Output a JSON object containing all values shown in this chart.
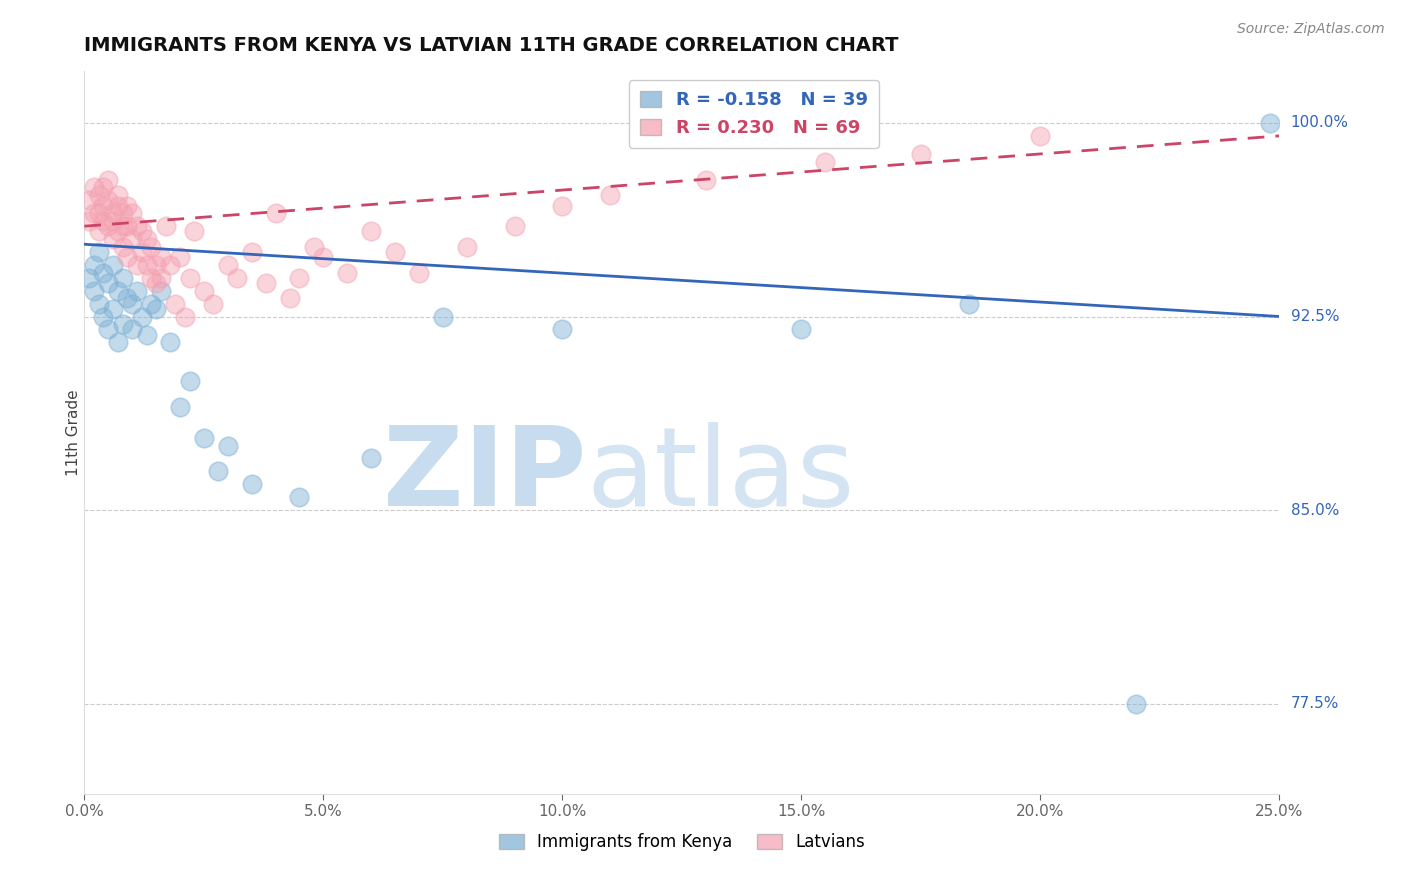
{
  "title": "IMMIGRANTS FROM KENYA VS LATVIAN 11TH GRADE CORRELATION CHART",
  "source_text": "Source: ZipAtlas.com",
  "ylabel": "11th Grade",
  "xlim": [
    0.0,
    0.25
  ],
  "ylim": [
    0.74,
    1.02
  ],
  "xtick_labels": [
    "0.0%",
    "5.0%",
    "10.0%",
    "15.0%",
    "20.0%",
    "25.0%"
  ],
  "xtick_values": [
    0.0,
    0.05,
    0.1,
    0.15,
    0.2,
    0.25
  ],
  "ytick_labels": [
    "77.5%",
    "85.0%",
    "92.5%",
    "100.0%"
  ],
  "ytick_values": [
    0.775,
    0.85,
    0.925,
    1.0
  ],
  "legend_blue_label": "Immigrants from Kenya",
  "legend_pink_label": "Latvians",
  "R_blue": -0.158,
  "N_blue": 39,
  "R_pink": 0.23,
  "N_pink": 69,
  "blue_color": "#7BAFD4",
  "pink_color": "#F4A0B0",
  "blue_line_color": "#3366BB",
  "pink_line_color": "#CC4466",
  "blue_line_y0": 0.953,
  "blue_line_y1": 0.925,
  "pink_line_y0": 0.96,
  "pink_line_y1": 0.995,
  "blue_scatter_x": [
    0.001,
    0.002,
    0.002,
    0.003,
    0.003,
    0.004,
    0.004,
    0.005,
    0.005,
    0.006,
    0.006,
    0.007,
    0.007,
    0.008,
    0.008,
    0.009,
    0.01,
    0.01,
    0.011,
    0.012,
    0.013,
    0.014,
    0.015,
    0.016,
    0.018,
    0.02,
    0.022,
    0.025,
    0.028,
    0.03,
    0.035,
    0.045,
    0.06,
    0.075,
    0.1,
    0.15,
    0.185,
    0.22,
    0.248
  ],
  "blue_scatter_y": [
    0.94,
    0.945,
    0.935,
    0.95,
    0.93,
    0.942,
    0.925,
    0.938,
    0.92,
    0.945,
    0.928,
    0.935,
    0.915,
    0.94,
    0.922,
    0.932,
    0.93,
    0.92,
    0.935,
    0.925,
    0.918,
    0.93,
    0.928,
    0.935,
    0.915,
    0.89,
    0.9,
    0.878,
    0.865,
    0.875,
    0.86,
    0.855,
    0.87,
    0.925,
    0.92,
    0.92,
    0.93,
    0.775,
    1.0
  ],
  "pink_scatter_x": [
    0.001,
    0.001,
    0.002,
    0.002,
    0.003,
    0.003,
    0.003,
    0.004,
    0.004,
    0.004,
    0.005,
    0.005,
    0.005,
    0.006,
    0.006,
    0.006,
    0.007,
    0.007,
    0.007,
    0.008,
    0.008,
    0.008,
    0.009,
    0.009,
    0.009,
    0.01,
    0.01,
    0.011,
    0.011,
    0.012,
    0.012,
    0.013,
    0.013,
    0.014,
    0.014,
    0.015,
    0.015,
    0.016,
    0.016,
    0.017,
    0.018,
    0.019,
    0.02,
    0.021,
    0.022,
    0.023,
    0.025,
    0.027,
    0.03,
    0.032,
    0.035,
    0.038,
    0.04,
    0.043,
    0.045,
    0.048,
    0.05,
    0.055,
    0.06,
    0.065,
    0.07,
    0.08,
    0.09,
    0.1,
    0.11,
    0.13,
    0.155,
    0.175,
    0.2
  ],
  "pink_scatter_y": [
    0.97,
    0.962,
    0.965,
    0.975,
    0.972,
    0.965,
    0.958,
    0.968,
    0.962,
    0.975,
    0.97,
    0.96,
    0.978,
    0.965,
    0.955,
    0.962,
    0.968,
    0.958,
    0.972,
    0.96,
    0.952,
    0.965,
    0.968,
    0.96,
    0.948,
    0.965,
    0.955,
    0.96,
    0.945,
    0.958,
    0.95,
    0.945,
    0.955,
    0.94,
    0.952,
    0.945,
    0.938,
    0.948,
    0.94,
    0.96,
    0.945,
    0.93,
    0.948,
    0.925,
    0.94,
    0.958,
    0.935,
    0.93,
    0.945,
    0.94,
    0.95,
    0.938,
    0.965,
    0.932,
    0.94,
    0.952,
    0.948,
    0.942,
    0.958,
    0.95,
    0.942,
    0.952,
    0.96,
    0.968,
    0.972,
    0.978,
    0.985,
    0.988,
    0.995
  ]
}
